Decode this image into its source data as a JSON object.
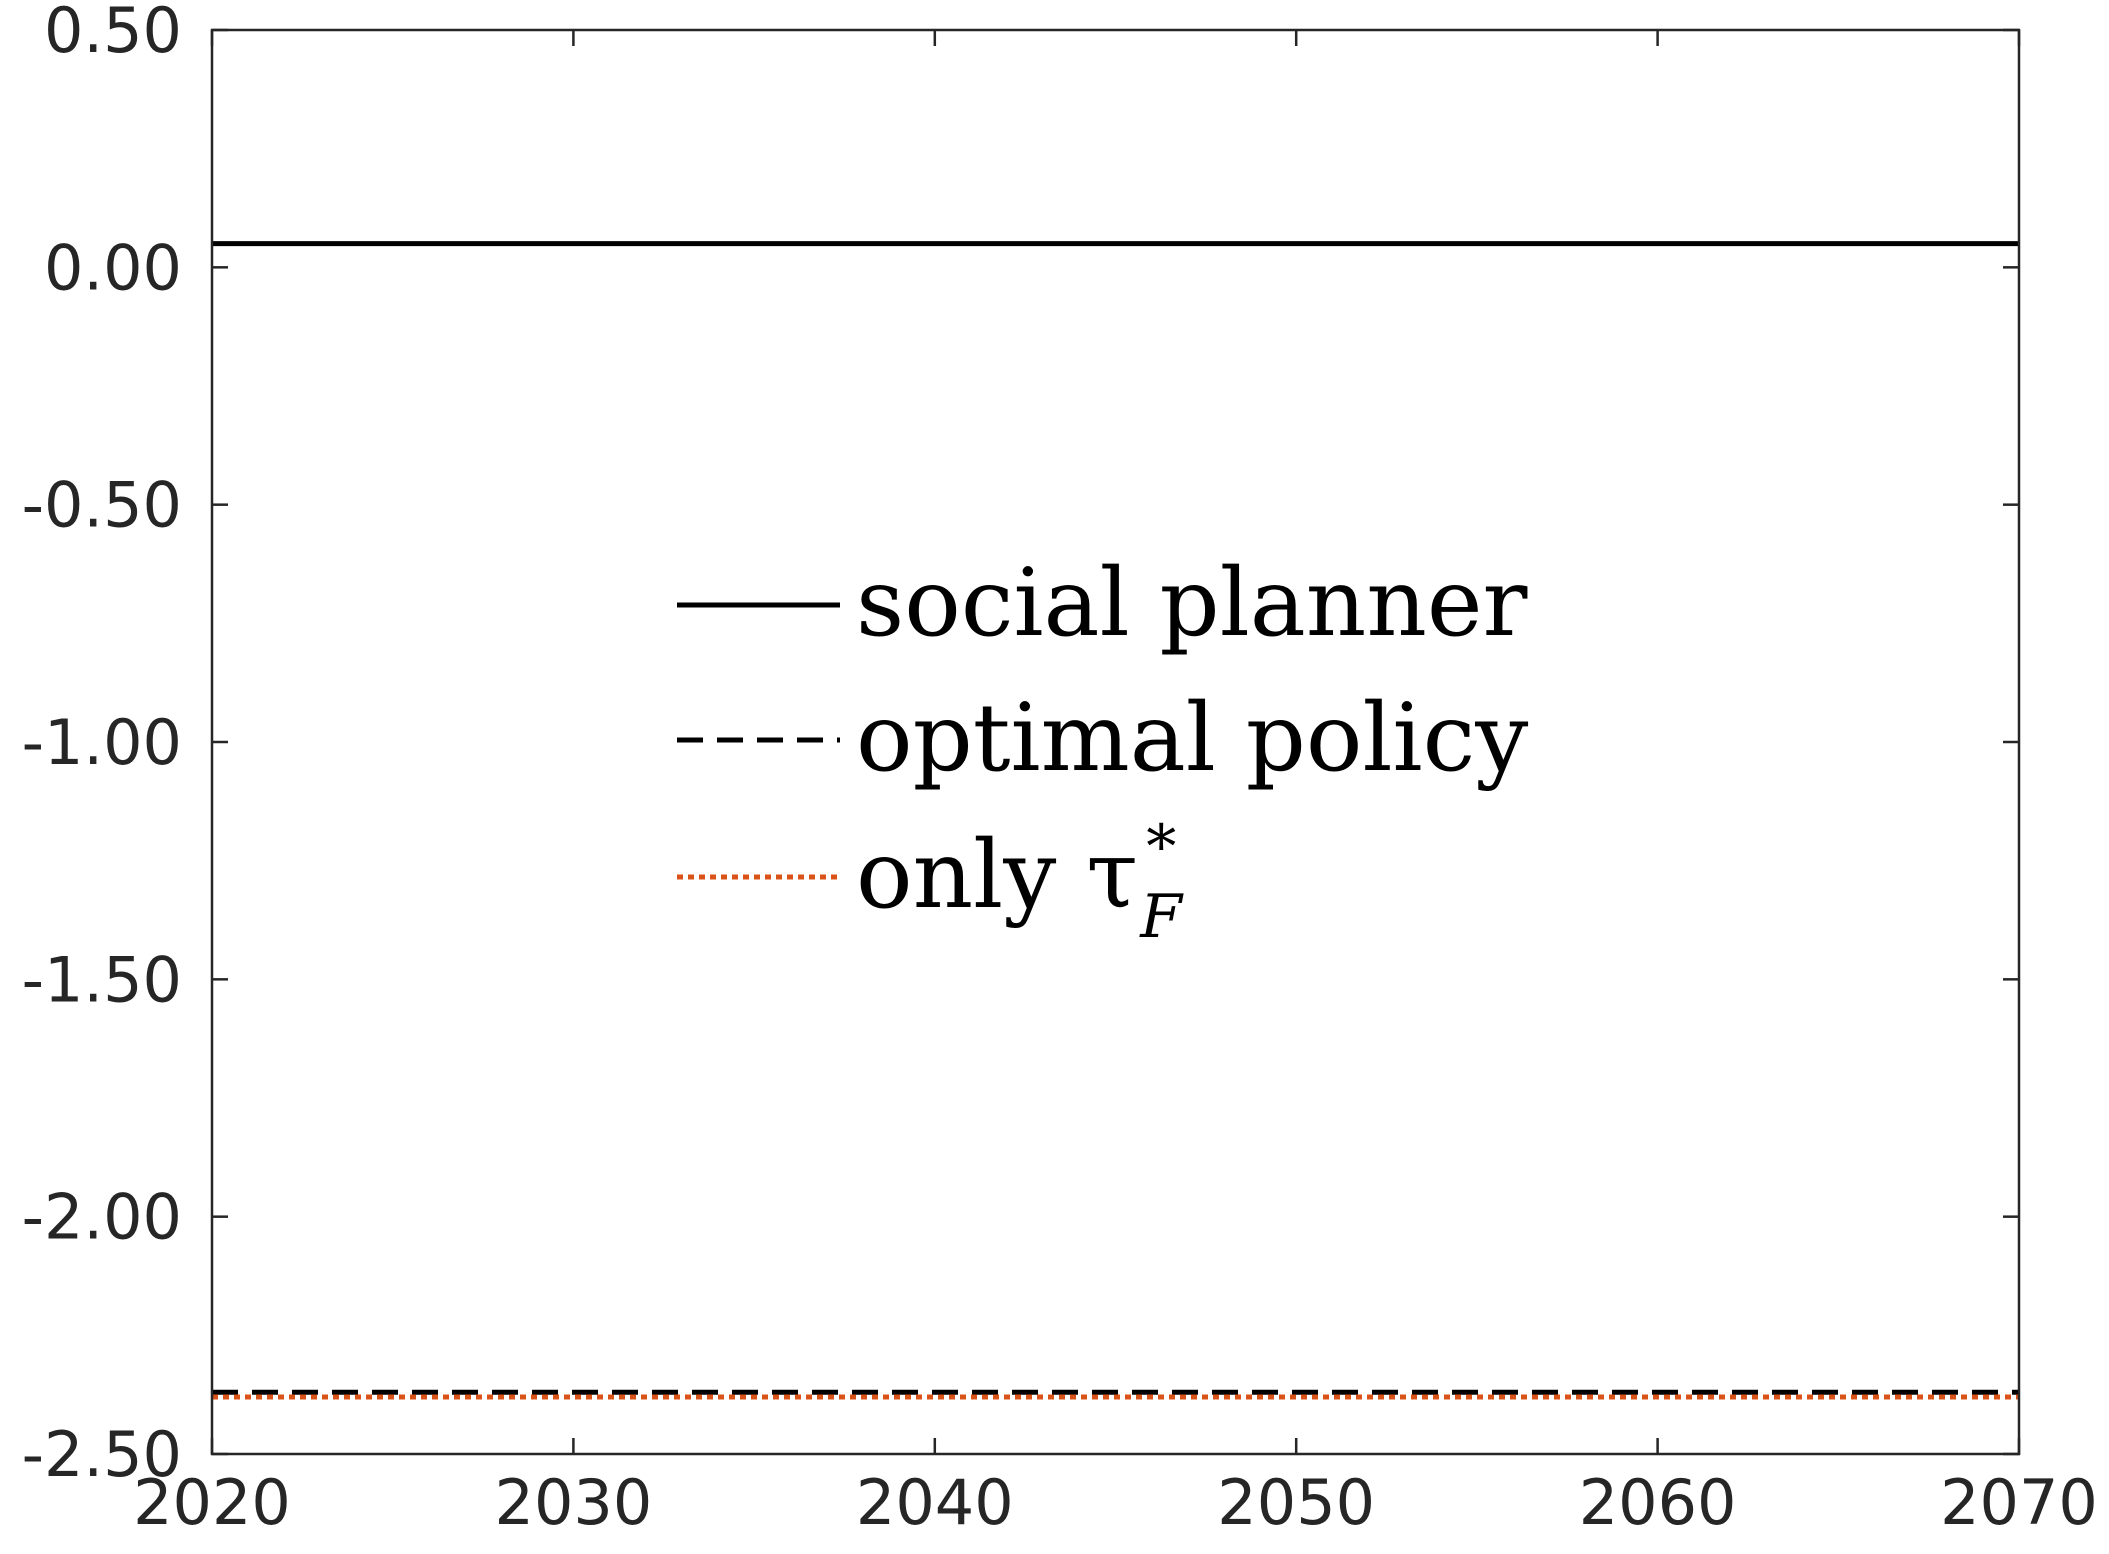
{
  "chart_data": {
    "type": "line",
    "title": "",
    "xlabel": "",
    "ylabel": "",
    "xlim": [
      2020,
      2070
    ],
    "ylim": [
      -2.5,
      0.5
    ],
    "x_ticks": [
      "2020",
      "2030",
      "2040",
      "2050",
      "2060",
      "2070"
    ],
    "y_ticks": [
      "0.50",
      "0.00",
      "-0.50",
      "-1.00",
      "-1.50",
      "-2.00",
      "-2.50"
    ],
    "grid": false,
    "legend_position": "center",
    "series": [
      {
        "name": "social planner",
        "style": "solid",
        "color": "#000000",
        "x": [
          2020,
          2030,
          2040,
          2050,
          2060,
          2070
        ],
        "y": [
          0.05,
          0.05,
          0.05,
          0.05,
          0.05,
          0.05
        ]
      },
      {
        "name": "optimal policy",
        "style": "dashed",
        "color": "#000000",
        "x": [
          2020,
          2030,
          2040,
          2050,
          2060,
          2070
        ],
        "y": [
          -2.37,
          -2.37,
          -2.37,
          -2.37,
          -2.37,
          -2.37
        ]
      },
      {
        "name": "only τ*F",
        "style": "dotted",
        "color": "#D95319",
        "x": [
          2020,
          2030,
          2040,
          2050,
          2060,
          2070
        ],
        "y": [
          -2.38,
          -2.38,
          -2.38,
          -2.38,
          -2.38,
          -2.38
        ]
      }
    ]
  },
  "legend": {
    "entries": [
      {
        "text": "social planner"
      },
      {
        "text": "optimal policy"
      },
      {
        "text": "only τ",
        "sup": "*",
        "sub": "F"
      }
    ]
  }
}
